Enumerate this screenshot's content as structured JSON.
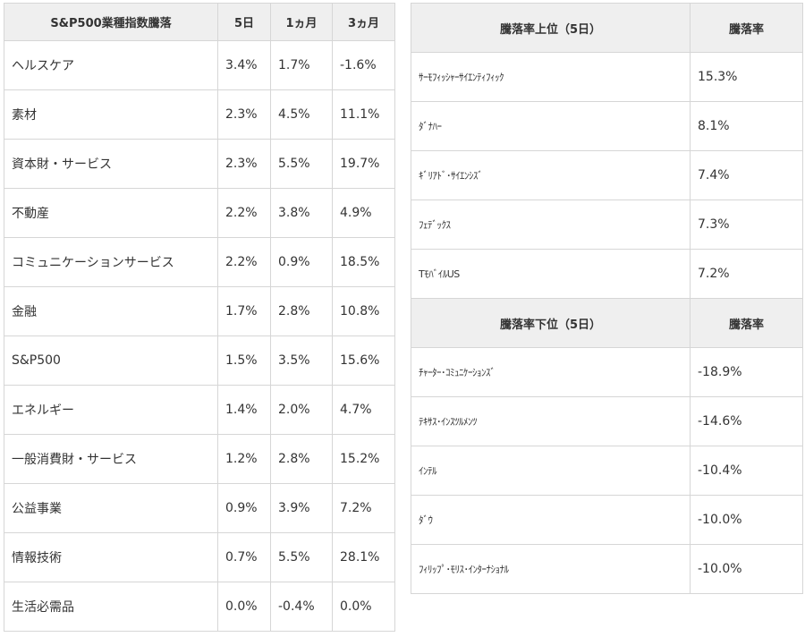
{
  "sector_table": {
    "headers": [
      "S&P500業種指数騰落",
      "5日",
      "1ヵ月",
      "3ヵ月"
    ],
    "rows": [
      [
        "ヘルスケア",
        "3.4%",
        "1.7%",
        "-1.6%"
      ],
      [
        "素材",
        "2.3%",
        "4.5%",
        "11.1%"
      ],
      [
        "資本財・サービス",
        "2.3%",
        "5.5%",
        "19.7%"
      ],
      [
        "不動産",
        "2.2%",
        "3.8%",
        "4.9%"
      ],
      [
        "コミュニケーションサービス",
        "2.2%",
        "0.9%",
        "18.5%"
      ],
      [
        "金融",
        "1.7%",
        "2.8%",
        "10.8%"
      ],
      [
        "S&P500",
        "1.5%",
        "3.5%",
        "15.6%"
      ],
      [
        "エネルギー",
        "1.4%",
        "2.0%",
        "4.7%"
      ],
      [
        "一般消費財・サービス",
        "1.2%",
        "2.8%",
        "15.2%"
      ],
      [
        "公益事業",
        "0.9%",
        "3.9%",
        "7.2%"
      ],
      [
        "情報技術",
        "0.7%",
        "5.5%",
        "28.1%"
      ],
      [
        "生活必需品",
        "0.0%",
        "-0.4%",
        "0.0%"
      ]
    ]
  },
  "top_movers": {
    "headers": [
      "騰落率上位（5日）",
      "騰落率"
    ],
    "rows": [
      [
        "ｻｰﾓﾌｨｯｼｬｰｻｲｴﾝﾃｨﾌｨｯｸ",
        "15.3%"
      ],
      [
        "ﾀﾞﾅﾊｰ",
        "8.1%"
      ],
      [
        "ｷﾞﾘｱﾄﾞ･ｻｲｴﾝｼｽﾞ",
        "7.4%"
      ],
      [
        "ﾌｪﾃﾞｯｸｽ",
        "7.3%"
      ],
      [
        "TﾓﾊﾞｲﾙUS",
        "7.2%"
      ]
    ]
  },
  "bottom_movers": {
    "headers": [
      "騰落率下位（5日）",
      "騰落率"
    ],
    "rows": [
      [
        "ﾁｬｰﾀｰ･ｺﾐｭﾆｹｰｼｮﾝｽﾞ",
        "-18.9%"
      ],
      [
        "ﾃｷｻｽ･ｲﾝｽﾂﾙﾒﾝﾂ",
        "-14.6%"
      ],
      [
        "ｲﾝﾃﾙ",
        "-10.4%"
      ],
      [
        "ﾀﾞｳ",
        "-10.0%"
      ],
      [
        "ﾌｨﾘｯﾌﾟ･ﾓﾘｽ･ｲﾝﾀｰﾅｼｮﾅﾙ",
        "-10.0%"
      ]
    ]
  }
}
